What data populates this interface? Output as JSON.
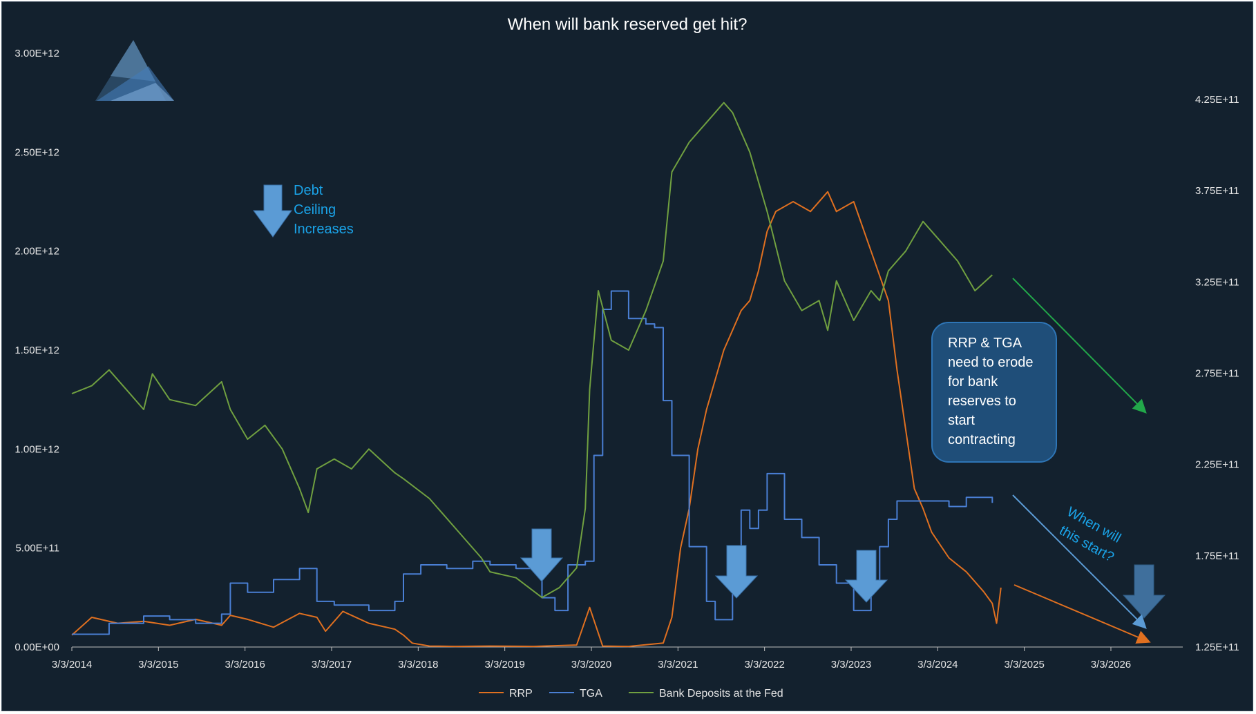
{
  "chart_data": {
    "type": "line",
    "title": "When will bank reserved get hit?",
    "xlabel": "",
    "ylabel": "",
    "y2label": "",
    "x_ticks": [
      "3/3/2014",
      "3/3/2015",
      "3/3/2016",
      "3/3/2017",
      "3/3/2018",
      "3/3/2019",
      "3/3/2020",
      "3/3/2021",
      "3/3/2022",
      "3/3/2023",
      "3/3/2024",
      "3/3/2025",
      "3/3/2026"
    ],
    "xlim": [
      2014.17,
      2027.0
    ],
    "y_left_ticks": [
      "0.00E+00",
      "5.00E+11",
      "1.00E+12",
      "1.50E+12",
      "2.00E+12",
      "2.50E+12",
      "3.00E+12"
    ],
    "y_left_lim": [
      0,
      3000000000000
    ],
    "y_right_ticks": [
      "1.25E+11",
      "1.75E+11",
      "2.25E+11",
      "2.75E+11",
      "3.25E+11",
      "3.75E+11",
      "4.25E+11"
    ],
    "y_right_lim": [
      125000000000,
      425000000000
    ],
    "legend_position": "bottom",
    "grid": false,
    "series": [
      {
        "name": "RRP",
        "axis": "left",
        "color": "#e07020",
        "x": [
          2014.17,
          2014.4,
          2014.7,
          2015.0,
          2015.3,
          2015.6,
          2015.9,
          2016.0,
          2016.2,
          2016.5,
          2016.8,
          2017.0,
          2017.1,
          2017.3,
          2017.6,
          2017.9,
          2018.0,
          2018.1,
          2018.3,
          2018.6,
          2019.0,
          2019.5,
          2020.0,
          2020.15,
          2020.3,
          2020.6,
          2021.0,
          2021.1,
          2021.2,
          2021.3,
          2021.4,
          2021.5,
          2021.6,
          2021.7,
          2021.8,
          2021.9,
          2022.0,
          2022.1,
          2022.2,
          2022.3,
          2022.5,
          2022.7,
          2022.9,
          2023.0,
          2023.2,
          2023.4,
          2023.6,
          2023.7,
          2023.8,
          2023.9,
          2024.0,
          2024.1,
          2024.3,
          2024.5,
          2024.7,
          2024.8,
          2024.85,
          2024.9
        ],
        "y": [
          60000000000,
          150000000000,
          120000000000,
          130000000000,
          110000000000,
          140000000000,
          110000000000,
          160000000000,
          140000000000,
          100000000000,
          170000000000,
          150000000000,
          80000000000,
          180000000000,
          120000000000,
          90000000000,
          60000000000,
          20000000000,
          5000000000,
          3000000000,
          5000000000,
          3000000000,
          10000000000,
          200000000000,
          5000000000,
          3000000000,
          20000000000,
          150000000000,
          500000000000,
          700000000000,
          1000000000000,
          1200000000000,
          1350000000000,
          1500000000000,
          1600000000000,
          1700000000000,
          1750000000000,
          1900000000000,
          2100000000000,
          2200000000000,
          2250000000000,
          2200000000000,
          2300000000000,
          2200000000000,
          2250000000000,
          2000000000000,
          1750000000000,
          1400000000000,
          1100000000000,
          800000000000,
          700000000000,
          580000000000,
          450000000000,
          380000000000,
          280000000000,
          220000000000,
          120000000000,
          300000000000
        ]
      },
      {
        "name": "TGA",
        "axis": "right",
        "color": "#4a7fd4",
        "x": [
          2014.17,
          2014.6,
          2015.0,
          2015.3,
          2015.6,
          2015.9,
          2016.0,
          2016.2,
          2016.5,
          2016.8,
          2017.0,
          2017.2,
          2017.6,
          2017.9,
          2018.0,
          2018.2,
          2018.5,
          2018.8,
          2019.0,
          2019.3,
          2019.6,
          2019.75,
          2019.9,
          2020.1,
          2020.2,
          2020.3,
          2020.4,
          2020.6,
          2020.8,
          2020.9,
          2021.0,
          2021.1,
          2021.3,
          2021.5,
          2021.6,
          2021.8,
          2021.9,
          2022.0,
          2022.1,
          2022.2,
          2022.4,
          2022.6,
          2022.8,
          2023.0,
          2023.2,
          2023.4,
          2023.5,
          2023.6,
          2023.7,
          2023.8,
          2024.0,
          2024.3,
          2024.5,
          2024.8
        ],
        "y": [
          132000000000,
          138000000000,
          142000000000,
          140000000000,
          138000000000,
          143000000000,
          160000000000,
          155000000000,
          162000000000,
          168000000000,
          150000000000,
          148000000000,
          145000000000,
          150000000000,
          165000000000,
          170000000000,
          168000000000,
          172000000000,
          170000000000,
          168000000000,
          152000000000,
          145000000000,
          170000000000,
          172000000000,
          230000000000,
          310000000000,
          320000000000,
          305000000000,
          302000000000,
          300000000000,
          260000000000,
          230000000000,
          180000000000,
          150000000000,
          140000000000,
          165000000000,
          200000000000,
          190000000000,
          200000000000,
          220000000000,
          195000000000,
          185000000000,
          170000000000,
          160000000000,
          145000000000,
          160000000000,
          180000000000,
          195000000000,
          205000000000,
          205000000000,
          205000000000,
          202000000000,
          207000000000,
          204000000000
        ]
      },
      {
        "name": "Bank Deposits at the Fed",
        "axis": "left",
        "color": "#70a040",
        "x": [
          2014.17,
          2014.4,
          2014.6,
          2014.8,
          2015.0,
          2015.1,
          2015.3,
          2015.6,
          2015.9,
          2016.0,
          2016.2,
          2016.4,
          2016.6,
          2016.8,
          2016.9,
          2017.0,
          2017.2,
          2017.4,
          2017.6,
          2017.9,
          2018.0,
          2018.3,
          2018.6,
          2018.9,
          2019.0,
          2019.3,
          2019.6,
          2019.8,
          2020.0,
          2020.1,
          2020.15,
          2020.25,
          2020.4,
          2020.6,
          2020.8,
          2021.0,
          2021.1,
          2021.3,
          2021.5,
          2021.7,
          2021.8,
          2021.9,
          2022.0,
          2022.2,
          2022.4,
          2022.6,
          2022.8,
          2022.9,
          2023.0,
          2023.2,
          2023.4,
          2023.5,
          2023.6,
          2023.8,
          2024.0,
          2024.2,
          2024.4,
          2024.6,
          2024.8
        ],
        "y": [
          1280000000000,
          1320000000000,
          1400000000000,
          1300000000000,
          1200000000000,
          1380000000000,
          1250000000000,
          1220000000000,
          1340000000000,
          1200000000000,
          1050000000000,
          1120000000000,
          1000000000000,
          800000000000,
          680000000000,
          900000000000,
          950000000000,
          900000000000,
          1000000000000,
          880000000000,
          850000000000,
          750000000000,
          600000000000,
          450000000000,
          380000000000,
          350000000000,
          250000000000,
          300000000000,
          400000000000,
          700000000000,
          1300000000000,
          1800000000000,
          1550000000000,
          1500000000000,
          1700000000000,
          1950000000000,
          2400000000000,
          2550000000000,
          2650000000000,
          2750000000000,
          2700000000000,
          2600000000000,
          2500000000000,
          2200000000000,
          1850000000000,
          1700000000000,
          1750000000000,
          1600000000000,
          1850000000000,
          1650000000000,
          1800000000000,
          1750000000000,
          1900000000000,
          2000000000000,
          2150000000000,
          2050000000000,
          1950000000000,
          1800000000000,
          1880000000000
        ]
      }
    ]
  },
  "annotations": {
    "debt_ceiling": [
      "Debt",
      "Ceiling",
      "Increases"
    ],
    "callout": [
      "RRP & TGA",
      "need to erode",
      "for bank",
      "reserves to",
      "start",
      "contracting"
    ],
    "when_start": [
      "When will",
      "this start?"
    ]
  },
  "colors": {
    "background": "#13212e",
    "arrow_fill": "#5b9bd5",
    "callout_fill": "#1f4e79",
    "callout_border": "#2e75b6",
    "annotation_text": "#1aa3e8",
    "green_arrow": "#22a84a",
    "orange_arrow": "#e07020",
    "blue_arrow": "#5b9bd5"
  }
}
